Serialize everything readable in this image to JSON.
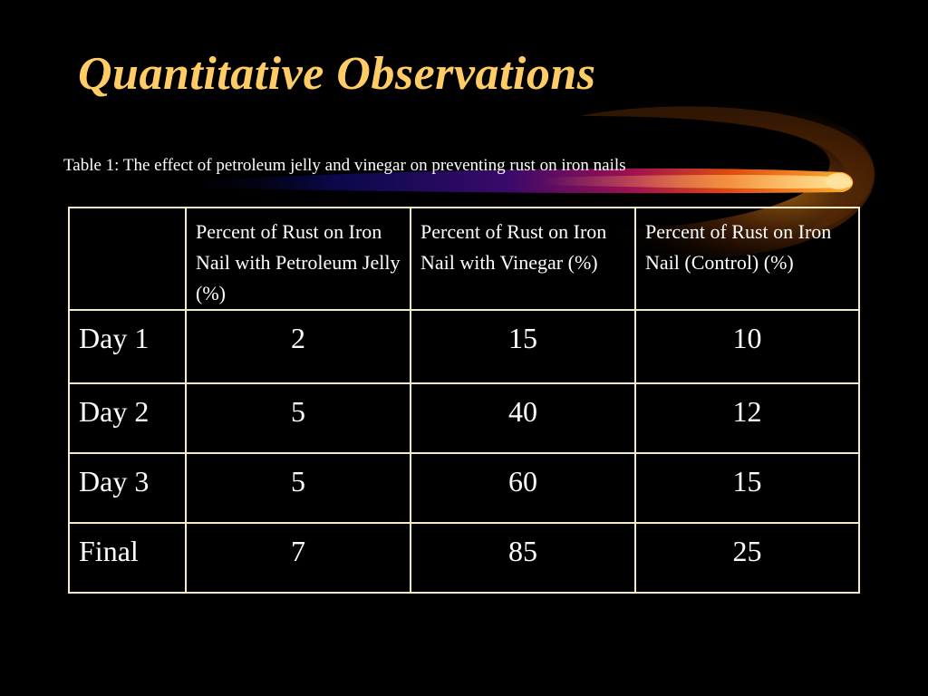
{
  "slide": {
    "title": "Quantitative Observations",
    "title_color": "#FFCC66",
    "background_color": "#000000",
    "decoration": "comet-swoosh"
  },
  "table": {
    "caption": "Table 1: The effect of petroleum jelly and vinegar on preventing rust on iron nails",
    "border_color": "#F5EBC8",
    "headers": [
      "",
      "Percent of Rust on Iron Nail with Petroleum Jelly (%)",
      "Percent of Rust on Iron Nail with Vinegar (%)",
      "Percent of Rust on Iron Nail (Control) (%)"
    ],
    "rows": [
      {
        "label": "Day 1",
        "petroleum_jelly": "2",
        "vinegar": "15",
        "control": "10"
      },
      {
        "label": "Day 2",
        "petroleum_jelly": "5",
        "vinegar": "40",
        "control": "12"
      },
      {
        "label": "Day 3",
        "petroleum_jelly": "5",
        "vinegar": "60",
        "control": "15"
      },
      {
        "label": "Final",
        "petroleum_jelly": "7",
        "vinegar": "85",
        "control": "25"
      }
    ]
  }
}
